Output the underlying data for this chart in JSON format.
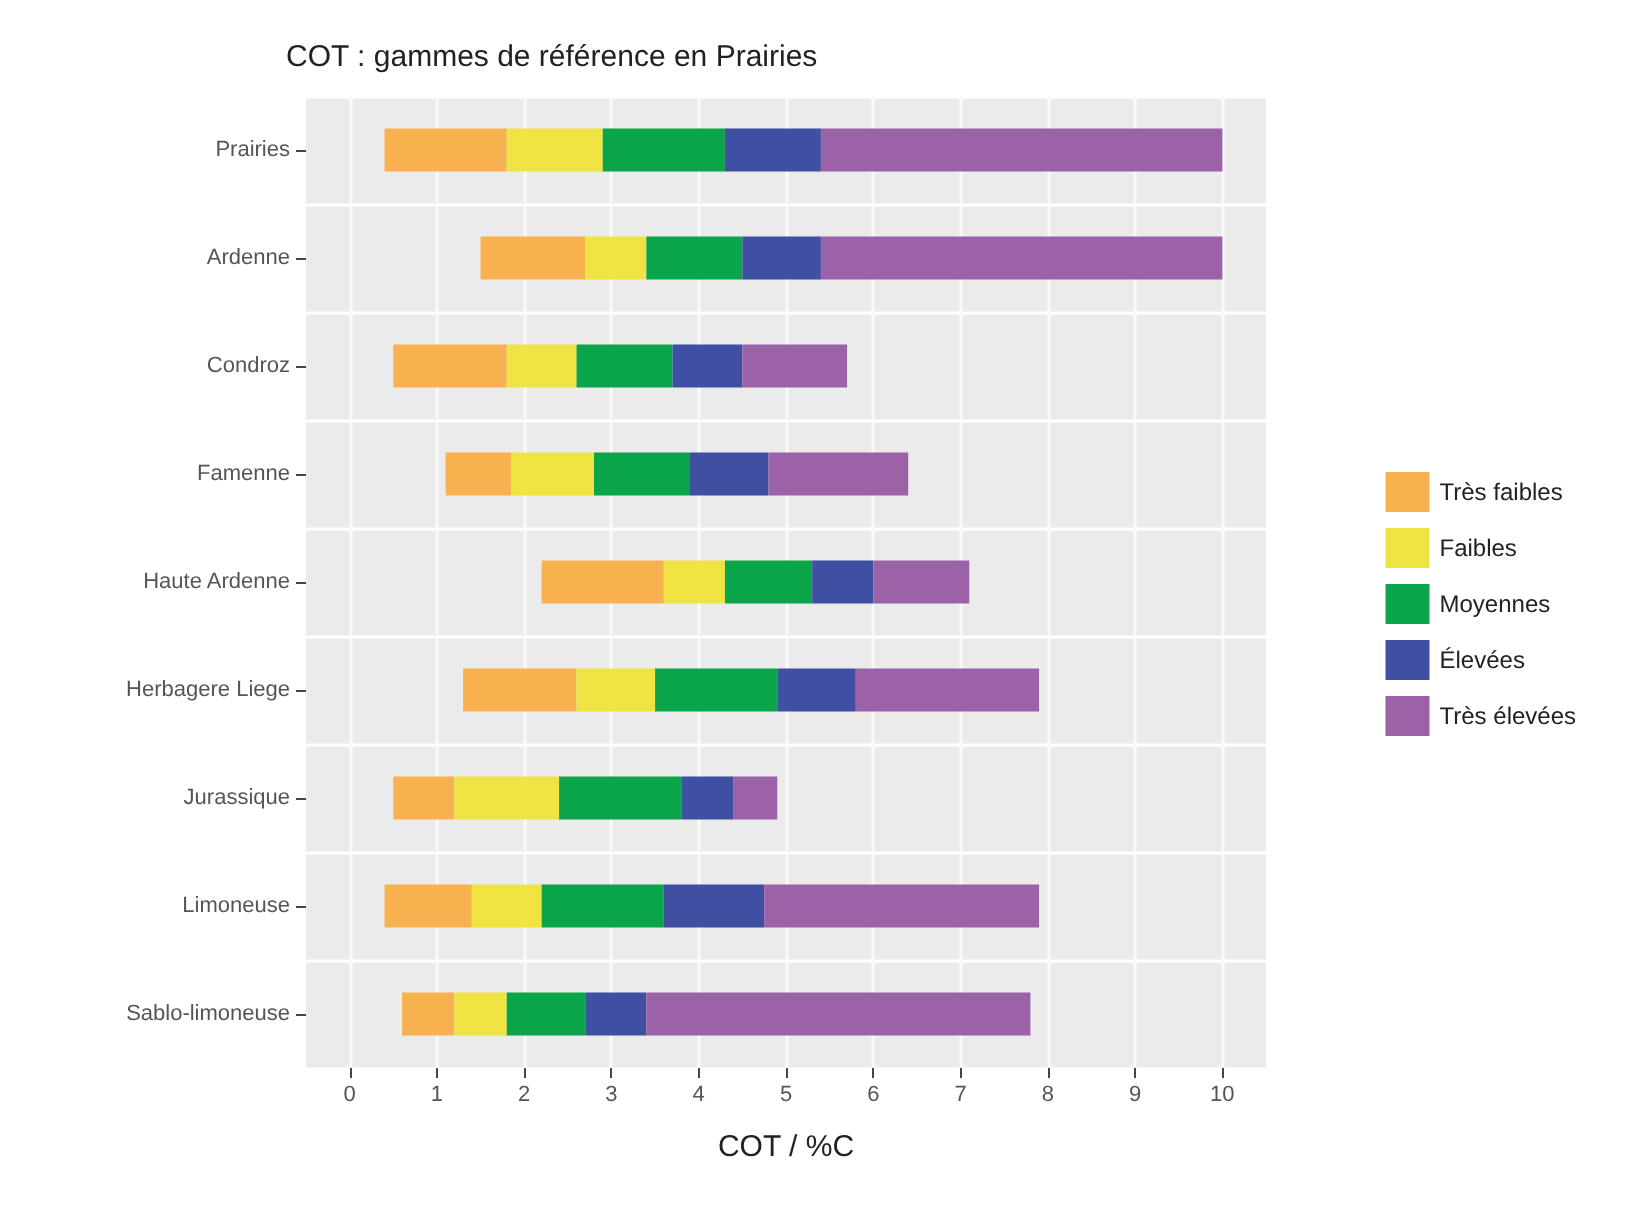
{
  "chart_data": {
    "type": "bar",
    "orientation": "horizontal",
    "title": "COT : gammes de référence en Prairies",
    "xlabel": "COT / %C",
    "categories": [
      "Prairies",
      "Ardenne",
      "Condroz",
      "Famenne",
      "Haute Ardenne",
      "Herbagere Liege",
      "Jurassique",
      "Limoneuse",
      "Sablo-limoneuse"
    ],
    "series": [
      {
        "name": "Très faibles",
        "color": "#f7b14f",
        "base": [
          0.4,
          1.5,
          0.5,
          1.1,
          2.2,
          1.3,
          0.5,
          0.4,
          0.6
        ],
        "values": [
          1.4,
          1.2,
          1.3,
          0.75,
          1.4,
          1.3,
          0.7,
          1.0,
          0.6
        ]
      },
      {
        "name": "Faibles",
        "color": "#f0e442",
        "base": [
          1.8,
          2.7,
          1.8,
          1.85,
          3.6,
          2.6,
          1.2,
          1.4,
          1.2
        ],
        "values": [
          1.1,
          0.7,
          0.8,
          0.95,
          0.7,
          0.9,
          1.2,
          0.8,
          0.6
        ]
      },
      {
        "name": "Moyennes",
        "color": "#0aa54a",
        "base": [
          2.9,
          3.4,
          2.6,
          2.8,
          4.3,
          3.5,
          2.4,
          2.2,
          1.8
        ],
        "values": [
          1.4,
          1.1,
          1.1,
          1.1,
          1.0,
          1.4,
          1.4,
          1.4,
          0.9
        ]
      },
      {
        "name": "Élevées",
        "color": "#3f4fa1",
        "base": [
          4.3,
          4.5,
          3.7,
          3.9,
          5.3,
          4.9,
          3.8,
          3.6,
          2.7
        ],
        "values": [
          1.1,
          0.9,
          0.8,
          0.9,
          0.7,
          0.9,
          0.6,
          1.15,
          0.7
        ]
      },
      {
        "name": "Très élevées",
        "color": "#9b62a8",
        "base": [
          5.4,
          5.4,
          4.5,
          4.8,
          6.0,
          5.8,
          4.4,
          4.75,
          3.4
        ],
        "values": [
          4.6,
          4.6,
          1.2,
          1.6,
          1.1,
          2.1,
          0.5,
          3.15,
          4.4
        ]
      }
    ],
    "xlim": [
      -0.5,
      10.5
    ],
    "xticks": [
      0,
      1,
      2,
      3,
      4,
      5,
      6,
      7,
      8,
      9,
      10
    ],
    "grid": true,
    "legend": "right"
  }
}
